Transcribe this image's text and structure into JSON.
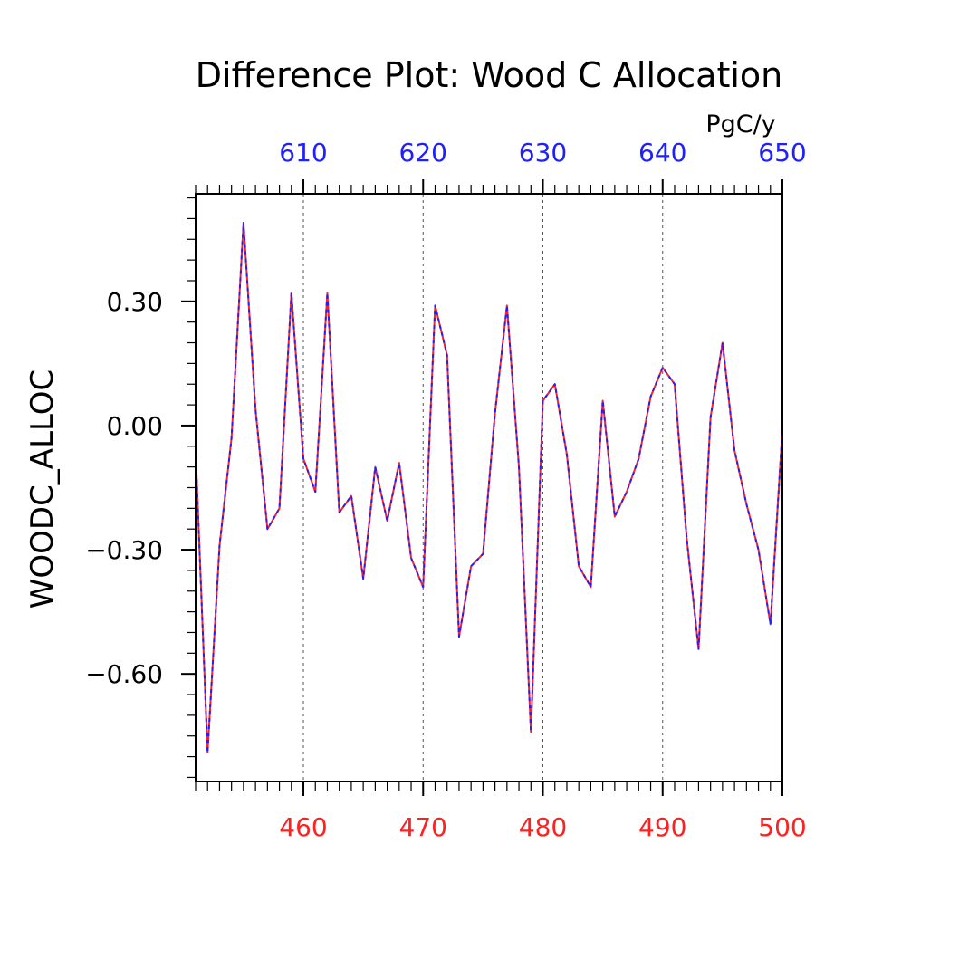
{
  "chart_data": {
    "type": "line",
    "title": "Difference Plot: Wood C Allocation",
    "units": "PgC/y",
    "ylabel": "WOODC_ALLOC",
    "xlabel": "",
    "colors": {
      "bottom_axis": "#ff2020",
      "top_axis": "#2020ff",
      "frame": "#000000",
      "grid": "#555555"
    },
    "bottom_axis": {
      "range": [
        451,
        500
      ],
      "ticks": [
        460,
        470,
        480,
        490,
        500
      ]
    },
    "top_axis": {
      "range": [
        601,
        650
      ],
      "ticks": [
        610,
        620,
        630,
        640,
        650
      ]
    },
    "y_axis": {
      "range": [
        -0.86,
        0.56
      ],
      "ticks": [
        0.3,
        0.0,
        -0.3,
        -0.6
      ],
      "tick_labels": [
        "0.30",
        "0.00",
        "−0.30",
        "−0.60"
      ]
    },
    "grid": "vertical dashed at major ticks",
    "x": [
      451,
      452,
      453,
      454,
      455,
      456,
      457,
      458,
      459,
      460,
      461,
      462,
      463,
      464,
      465,
      466,
      467,
      468,
      469,
      470,
      471,
      472,
      473,
      474,
      475,
      476,
      477,
      478,
      479,
      480,
      481,
      482,
      483,
      484,
      485,
      486,
      487,
      488,
      489,
      490,
      491,
      492,
      493,
      494,
      495,
      496,
      497,
      498,
      499,
      500
    ],
    "series": [
      {
        "color": "#ff2020",
        "style": "solid",
        "values": [
          -0.06,
          -0.79,
          -0.29,
          -0.03,
          0.49,
          0.04,
          -0.25,
          -0.2,
          0.32,
          -0.08,
          -0.16,
          0.32,
          -0.21,
          -0.17,
          -0.37,
          -0.1,
          -0.23,
          -0.09,
          -0.32,
          -0.39,
          0.29,
          0.17,
          -0.51,
          -0.34,
          -0.31,
          0.03,
          0.29,
          -0.1,
          -0.74,
          0.06,
          0.1,
          -0.07,
          -0.34,
          -0.39,
          0.06,
          -0.22,
          -0.16,
          -0.08,
          0.07,
          0.14,
          0.1,
          -0.27,
          -0.54,
          0.02,
          0.2,
          -0.06,
          -0.19,
          -0.3,
          -0.48,
          -0.01
        ]
      },
      {
        "color": "#2020ff",
        "style": "dashed",
        "values": [
          -0.06,
          -0.79,
          -0.29,
          -0.03,
          0.49,
          0.04,
          -0.25,
          -0.2,
          0.32,
          -0.08,
          -0.16,
          0.32,
          -0.21,
          -0.17,
          -0.37,
          -0.1,
          -0.23,
          -0.09,
          -0.32,
          -0.39,
          0.29,
          0.17,
          -0.51,
          -0.34,
          -0.31,
          0.03,
          0.29,
          -0.1,
          -0.74,
          0.06,
          0.1,
          -0.07,
          -0.34,
          -0.39,
          0.06,
          -0.22,
          -0.16,
          -0.08,
          0.07,
          0.14,
          0.1,
          -0.27,
          -0.54,
          0.02,
          0.2,
          -0.06,
          -0.19,
          -0.3,
          -0.48,
          -0.01
        ]
      }
    ]
  }
}
